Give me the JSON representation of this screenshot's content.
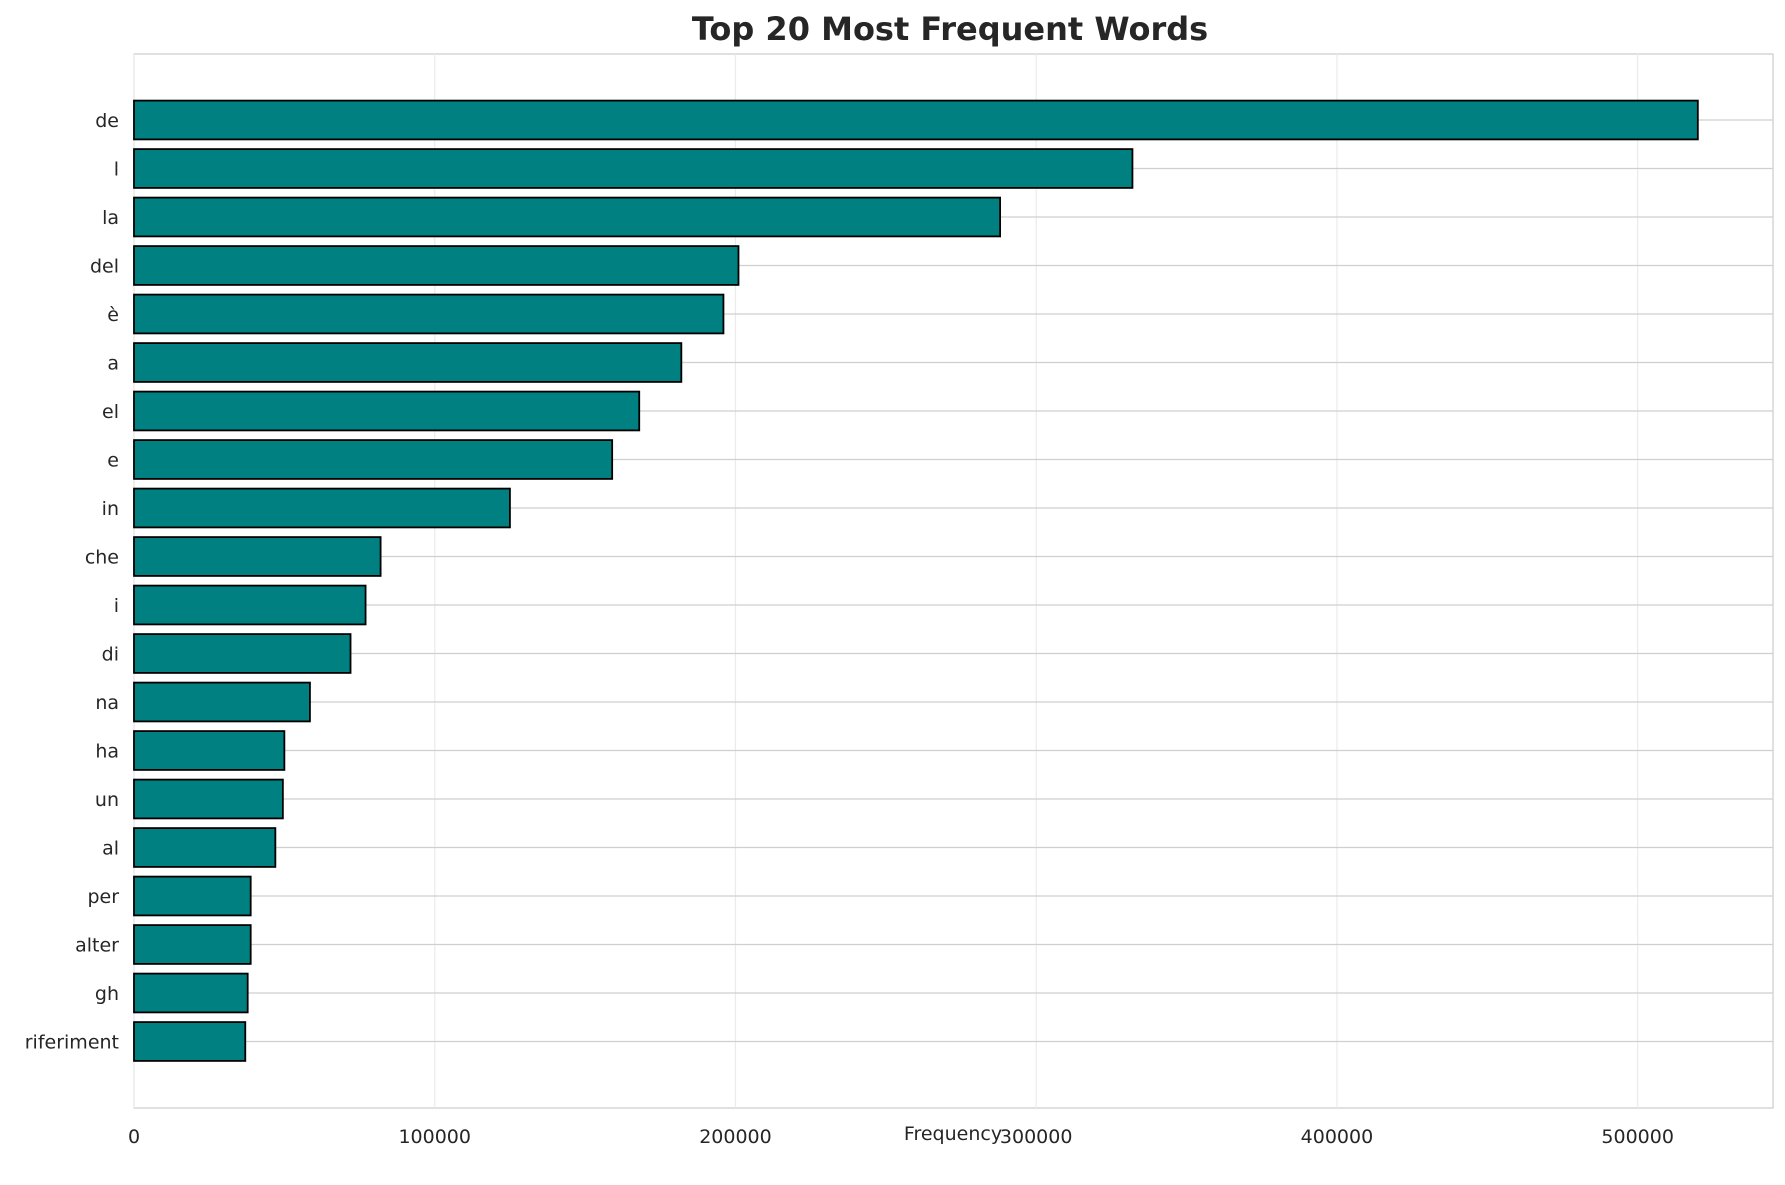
{
  "chart_data": {
    "type": "bar",
    "orientation": "horizontal",
    "title": "Top 20 Most Frequent Words",
    "xlabel": "Frequency",
    "ylabel": "",
    "categories": [
      "de",
      "l",
      "la",
      "del",
      "è",
      "a",
      "el",
      "e",
      "in",
      "che",
      "i",
      "di",
      "na",
      "ha",
      "un",
      "al",
      "per",
      "alter",
      "gh",
      "riferiment"
    ],
    "values": [
      520000,
      332000,
      288000,
      201000,
      196000,
      182000,
      168000,
      159000,
      125000,
      82000,
      77000,
      72000,
      58500,
      50000,
      49500,
      47000,
      38800,
      38800,
      37800,
      37000
    ],
    "xlim": [
      0,
      545000
    ],
    "xticks": [
      0,
      100000,
      200000,
      300000,
      400000,
      500000
    ],
    "xtick_labels": [
      "0",
      "100000",
      "200000",
      "300000",
      "400000",
      "500000"
    ],
    "grid": true,
    "bar_color": "#008080",
    "bar_edge_color": "#000000"
  }
}
